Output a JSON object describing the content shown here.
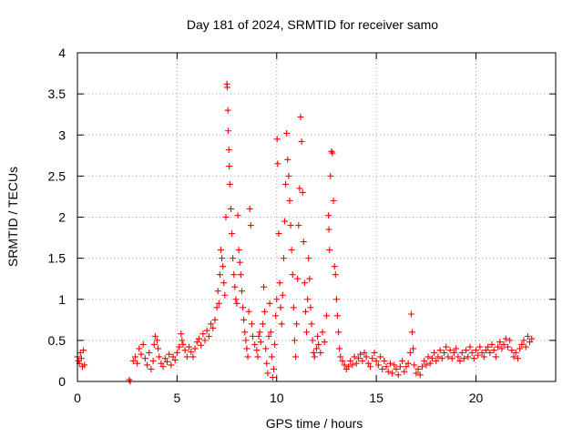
{
  "chart_data": {
    "type": "scatter",
    "title": "Day 181 of 2024, SRMTID for receiver samo",
    "xlabel": "GPS time / hours",
    "ylabel": "SRMTID / TECUs",
    "xlim": [
      0,
      24
    ],
    "ylim": [
      0,
      4
    ],
    "xticks": [
      0,
      5,
      10,
      15,
      20
    ],
    "xtick_labels": [
      "0",
      "5",
      "10",
      "15",
      "20"
    ],
    "yticks": [
      0,
      0.5,
      1,
      1.5,
      2,
      2.5,
      3,
      3.5,
      4
    ],
    "ytick_labels": [
      "0",
      "0.5",
      "1",
      "1.5",
      "2",
      "2.5",
      "3",
      "3.5",
      "4"
    ],
    "grid": true,
    "marker": "+",
    "series": [
      {
        "name": "SRMTID",
        "color": "#ff0000",
        "points": [
          [
            0.0,
            0.3
          ],
          [
            0.05,
            0.25
          ],
          [
            0.1,
            0.22
          ],
          [
            0.15,
            0.35
          ],
          [
            0.2,
            0.28
          ],
          [
            0.25,
            0.18
          ],
          [
            0.3,
            0.38
          ],
          [
            0.35,
            0.2
          ],
          [
            2.6,
            0.02
          ],
          [
            2.65,
            0.0
          ],
          [
            2.8,
            0.25
          ],
          [
            2.9,
            0.3
          ],
          [
            3.0,
            0.22
          ],
          [
            3.1,
            0.4
          ],
          [
            3.2,
            0.33
          ],
          [
            3.3,
            0.45
          ],
          [
            3.4,
            0.28
          ],
          [
            3.5,
            0.2
          ],
          [
            3.6,
            0.35
          ],
          [
            3.7,
            0.15
          ],
          [
            3.8,
            0.25
          ],
          [
            3.85,
            0.45
          ],
          [
            3.9,
            0.55
          ],
          [
            4.0,
            0.5
          ],
          [
            4.05,
            0.4
          ],
          [
            4.1,
            0.3
          ],
          [
            4.2,
            0.22
          ],
          [
            4.3,
            0.18
          ],
          [
            4.4,
            0.28
          ],
          [
            4.5,
            0.24
          ],
          [
            4.6,
            0.33
          ],
          [
            4.7,
            0.2
          ],
          [
            4.8,
            0.3
          ],
          [
            4.9,
            0.26
          ],
          [
            5.0,
            0.35
          ],
          [
            5.1,
            0.42
          ],
          [
            5.2,
            0.58
          ],
          [
            5.25,
            0.5
          ],
          [
            5.3,
            0.45
          ],
          [
            5.4,
            0.38
          ],
          [
            5.5,
            0.3
          ],
          [
            5.6,
            0.42
          ],
          [
            5.7,
            0.36
          ],
          [
            5.8,
            0.3
          ],
          [
            5.9,
            0.4
          ],
          [
            6.0,
            0.48
          ],
          [
            6.1,
            0.52
          ],
          [
            6.2,
            0.44
          ],
          [
            6.3,
            0.58
          ],
          [
            6.4,
            0.5
          ],
          [
            6.5,
            0.62
          ],
          [
            6.6,
            0.55
          ],
          [
            6.7,
            0.7
          ],
          [
            6.8,
            0.65
          ],
          [
            6.9,
            0.75
          ],
          [
            7.0,
            0.9
          ],
          [
            7.05,
            1.1
          ],
          [
            7.1,
            0.95
          ],
          [
            7.15,
            1.3
          ],
          [
            7.2,
            1.6
          ],
          [
            7.25,
            1.5
          ],
          [
            7.3,
            1.4
          ],
          [
            7.35,
            1.2
          ],
          [
            7.4,
            1.05
          ],
          [
            7.45,
            2.0
          ],
          [
            7.5,
            3.62
          ],
          [
            7.52,
            3.58
          ],
          [
            7.55,
            3.3
          ],
          [
            7.57,
            3.05
          ],
          [
            7.6,
            2.82
          ],
          [
            7.62,
            2.62
          ],
          [
            7.65,
            2.4
          ],
          [
            7.7,
            2.1
          ],
          [
            7.75,
            1.8
          ],
          [
            7.8,
            1.5
          ],
          [
            7.85,
            1.3
          ],
          [
            7.9,
            1.15
          ],
          [
            7.95,
            1.0
          ],
          [
            8.0,
            0.95
          ],
          [
            8.05,
            2.02
          ],
          [
            8.1,
            1.6
          ],
          [
            8.15,
            1.45
          ],
          [
            8.2,
            1.3
          ],
          [
            8.25,
            1.1
          ],
          [
            8.3,
            0.9
          ],
          [
            8.35,
            0.75
          ],
          [
            8.4,
            0.6
          ],
          [
            8.45,
            0.5
          ],
          [
            8.5,
            0.4
          ],
          [
            8.55,
            0.3
          ],
          [
            8.6,
            0.85
          ],
          [
            8.65,
            2.1
          ],
          [
            8.7,
            1.9
          ],
          [
            8.75,
            0.7
          ],
          [
            8.8,
            0.55
          ],
          [
            8.9,
            0.45
          ],
          [
            9.0,
            0.38
          ],
          [
            9.05,
            0.3
          ],
          [
            9.1,
            0.55
          ],
          [
            9.15,
            0.6
          ],
          [
            9.2,
            0.48
          ],
          [
            9.3,
            0.7
          ],
          [
            9.35,
            1.15
          ],
          [
            9.4,
            0.85
          ],
          [
            9.45,
            0.4
          ],
          [
            9.5,
            0.22
          ],
          [
            9.55,
            0.1
          ],
          [
            9.6,
            0.55
          ],
          [
            9.65,
            0.95
          ],
          [
            9.7,
            0.6
          ],
          [
            9.75,
            0.3
          ],
          [
            9.8,
            0.05
          ],
          [
            9.85,
            0.15
          ],
          [
            9.9,
            0.45
          ],
          [
            9.95,
            0.8
          ],
          [
            10.0,
            1.0
          ],
          [
            10.02,
            2.95
          ],
          [
            10.05,
            2.65
          ],
          [
            10.1,
            1.8
          ],
          [
            10.15,
            1.2
          ],
          [
            10.2,
            0.9
          ],
          [
            10.25,
            0.7
          ],
          [
            10.3,
            1.05
          ],
          [
            10.35,
            1.5
          ],
          [
            10.4,
            1.95
          ],
          [
            10.45,
            2.4
          ],
          [
            10.5,
            3.02
          ],
          [
            10.55,
            2.7
          ],
          [
            10.6,
            2.5
          ],
          [
            10.65,
            2.2
          ],
          [
            10.7,
            1.9
          ],
          [
            10.75,
            1.6
          ],
          [
            10.8,
            1.3
          ],
          [
            10.85,
            0.9
          ],
          [
            10.9,
            0.5
          ],
          [
            10.95,
            0.3
          ],
          [
            11.0,
            0.7
          ],
          [
            11.05,
            1.25
          ],
          [
            11.1,
            1.9
          ],
          [
            11.15,
            2.35
          ],
          [
            11.2,
            3.22
          ],
          [
            11.25,
            2.92
          ],
          [
            11.3,
            2.3
          ],
          [
            11.35,
            1.7
          ],
          [
            11.4,
            1.2
          ],
          [
            11.45,
            0.85
          ],
          [
            11.5,
            0.6
          ],
          [
            11.55,
            1.0
          ],
          [
            11.6,
            1.5
          ],
          [
            11.65,
            1.25
          ],
          [
            11.7,
            0.9
          ],
          [
            11.75,
            0.7
          ],
          [
            11.8,
            0.5
          ],
          [
            11.85,
            0.35
          ],
          [
            11.9,
            0.3
          ],
          [
            12.0,
            0.4
          ],
          [
            12.05,
            0.55
          ],
          [
            12.1,
            0.45
          ],
          [
            12.2,
            0.35
          ],
          [
            12.3,
            0.6
          ],
          [
            12.4,
            0.48
          ],
          [
            12.5,
            0.8
          ],
          [
            12.6,
            2.02
          ],
          [
            12.62,
            1.85
          ],
          [
            12.65,
            1.6
          ],
          [
            12.7,
            2.5
          ],
          [
            12.75,
            2.8
          ],
          [
            12.8,
            2.78
          ],
          [
            12.85,
            2.2
          ],
          [
            12.9,
            1.4
          ],
          [
            12.95,
            1.3
          ],
          [
            13.0,
            1.0
          ],
          [
            13.05,
            0.8
          ],
          [
            13.1,
            0.6
          ],
          [
            13.15,
            0.4
          ],
          [
            13.2,
            0.3
          ],
          [
            13.3,
            0.25
          ],
          [
            13.4,
            0.2
          ],
          [
            13.5,
            0.15
          ],
          [
            13.6,
            0.18
          ],
          [
            13.7,
            0.25
          ],
          [
            13.8,
            0.2
          ],
          [
            13.9,
            0.3
          ],
          [
            14.0,
            0.22
          ],
          [
            14.1,
            0.28
          ],
          [
            14.2,
            0.33
          ],
          [
            14.3,
            0.25
          ],
          [
            14.4,
            0.35
          ],
          [
            14.5,
            0.3
          ],
          [
            14.6,
            0.22
          ],
          [
            14.7,
            0.18
          ],
          [
            14.8,
            0.28
          ],
          [
            14.9,
            0.35
          ],
          [
            15.0,
            0.25
          ],
          [
            15.1,
            0.2
          ],
          [
            15.2,
            0.3
          ],
          [
            15.3,
            0.15
          ],
          [
            15.4,
            0.25
          ],
          [
            15.5,
            0.18
          ],
          [
            15.6,
            0.12
          ],
          [
            15.7,
            0.22
          ],
          [
            15.8,
            0.1
          ],
          [
            15.9,
            0.2
          ],
          [
            16.0,
            0.15
          ],
          [
            16.1,
            0.08
          ],
          [
            16.2,
            0.18
          ],
          [
            16.3,
            0.25
          ],
          [
            16.4,
            0.12
          ],
          [
            16.5,
            0.18
          ],
          [
            16.6,
            0.22
          ],
          [
            16.7,
            0.35
          ],
          [
            16.75,
            0.82
          ],
          [
            16.8,
            0.6
          ],
          [
            16.85,
            0.4
          ],
          [
            16.9,
            0.2
          ],
          [
            17.0,
            0.1
          ],
          [
            17.1,
            0.15
          ],
          [
            17.2,
            0.08
          ],
          [
            17.3,
            0.18
          ],
          [
            17.4,
            0.25
          ],
          [
            17.5,
            0.2
          ],
          [
            17.6,
            0.3
          ],
          [
            17.7,
            0.22
          ],
          [
            17.8,
            0.28
          ],
          [
            17.9,
            0.35
          ],
          [
            18.0,
            0.25
          ],
          [
            18.1,
            0.3
          ],
          [
            18.2,
            0.38
          ],
          [
            18.3,
            0.28
          ],
          [
            18.4,
            0.35
          ],
          [
            18.5,
            0.42
          ],
          [
            18.6,
            0.3
          ],
          [
            18.7,
            0.38
          ],
          [
            18.8,
            0.28
          ],
          [
            18.9,
            0.35
          ],
          [
            19.0,
            0.4
          ],
          [
            19.1,
            0.3
          ],
          [
            19.2,
            0.25
          ],
          [
            19.3,
            0.35
          ],
          [
            19.4,
            0.28
          ],
          [
            19.5,
            0.38
          ],
          [
            19.6,
            0.3
          ],
          [
            19.7,
            0.42
          ],
          [
            19.8,
            0.35
          ],
          [
            19.9,
            0.28
          ],
          [
            20.0,
            0.38
          ],
          [
            20.1,
            0.32
          ],
          [
            20.2,
            0.42
          ],
          [
            20.3,
            0.35
          ],
          [
            20.4,
            0.3
          ],
          [
            20.5,
            0.38
          ],
          [
            20.6,
            0.42
          ],
          [
            20.7,
            0.35
          ],
          [
            20.8,
            0.45
          ],
          [
            20.9,
            0.38
          ],
          [
            21.0,
            0.3
          ],
          [
            21.1,
            0.42
          ],
          [
            21.2,
            0.48
          ],
          [
            21.3,
            0.4
          ],
          [
            21.4,
            0.45
          ],
          [
            21.5,
            0.52
          ],
          [
            21.6,
            0.42
          ],
          [
            21.7,
            0.5
          ],
          [
            21.8,
            0.38
          ],
          [
            21.9,
            0.3
          ],
          [
            22.0,
            0.35
          ],
          [
            22.1,
            0.28
          ],
          [
            22.2,
            0.4
          ],
          [
            22.3,
            0.45
          ],
          [
            22.4,
            0.5
          ],
          [
            22.5,
            0.42
          ],
          [
            22.6,
            0.55
          ],
          [
            22.7,
            0.48
          ],
          [
            22.8,
            0.52
          ]
        ]
      }
    ]
  }
}
